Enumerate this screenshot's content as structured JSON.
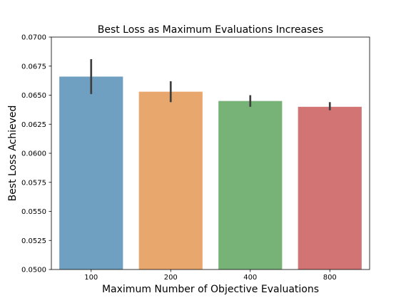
{
  "chart_data": {
    "type": "bar",
    "title": "Best Loss as Maximum Evaluations Increases",
    "xlabel": "Maximum Number of Objective Evaluations",
    "ylabel": "Best Loss Achieved",
    "categories": [
      "100",
      "200",
      "400",
      "800"
    ],
    "values": [
      0.0666,
      0.0653,
      0.0645,
      0.064
    ],
    "error_low": [
      0.0651,
      0.0644,
      0.064,
      0.0637
    ],
    "error_high": [
      0.0681,
      0.0662,
      0.065,
      0.0644
    ],
    "colors": [
      "#6f9fc1",
      "#e8a76c",
      "#77b377",
      "#d27474"
    ],
    "error_color": "#3f3f3f",
    "ylim": [
      0.05,
      0.07
    ],
    "yticks": [
      0.05,
      0.0525,
      0.055,
      0.0575,
      0.06,
      0.0625,
      0.065,
      0.0675,
      0.07
    ],
    "ytick_labels": [
      "0.0500",
      "0.0525",
      "0.0550",
      "0.0575",
      "0.0600",
      "0.0625",
      "0.0650",
      "0.0675",
      "0.0700"
    ],
    "grid": false,
    "legend": "none"
  }
}
